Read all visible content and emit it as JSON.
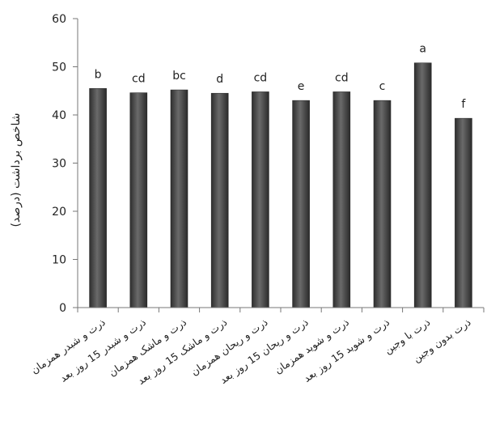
{
  "chart_data": {
    "type": "bar",
    "title": "",
    "xlabel": "",
    "ylabel": "شاخص برداشت (درصد)",
    "ylim": [
      0,
      60
    ],
    "yticks": [
      0,
      10,
      20,
      30,
      40,
      50,
      60
    ],
    "grid": false,
    "legend": "none",
    "bar_color": "#4a4a4a",
    "categories": [
      "ذرت و شبدر همزمان",
      "ذرت و شبدر 15 روز بعد",
      "ذرت و ماشک همزمان",
      "ذرت و ماشک 15 روز بعد",
      "ذرت و ریحان همزمان",
      "ذرت و ریحان 15 روز بعد",
      "ذرت و شوید همزمان",
      "ذرت و شوید 15 روز بعد",
      "ذرت با وجین",
      "ذرت بدون وجین"
    ],
    "values": [
      45.5,
      44.6,
      45.2,
      44.5,
      44.8,
      43.0,
      44.8,
      43.0,
      50.8,
      39.3
    ],
    "annotations": [
      "b",
      "cd",
      "bc",
      "d",
      "cd",
      "e",
      "cd",
      "c",
      "a",
      "f"
    ]
  }
}
